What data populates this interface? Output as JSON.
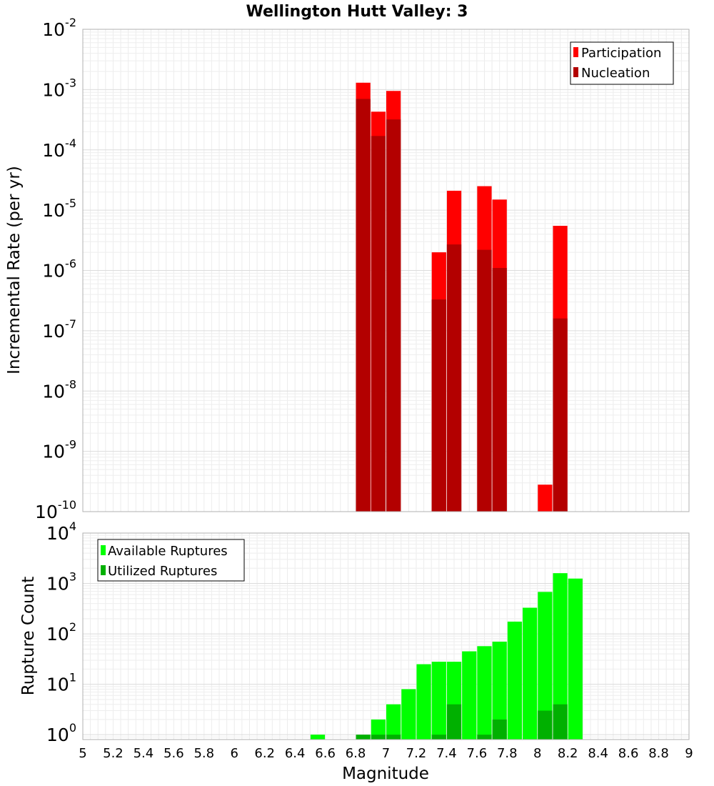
{
  "chart_data": [
    {
      "type": "bar",
      "title": "Wellington Hutt Valley: 3",
      "xlabel": "",
      "ylabel": "Incremental Rate (per yr)",
      "yscale": "log",
      "xlim": [
        5,
        9
      ],
      "ylim": [
        1e-10,
        0.01
      ],
      "grid": true,
      "legend_position": "top-right",
      "y_ticks": [
        {
          "base": "10",
          "exp": "-2",
          "v": 0.01
        },
        {
          "base": "10",
          "exp": "-3",
          "v": 0.001
        },
        {
          "base": "10",
          "exp": "-4",
          "v": 0.0001
        },
        {
          "base": "10",
          "exp": "-5",
          "v": 1e-05
        },
        {
          "base": "10",
          "exp": "-6",
          "v": 1e-06
        },
        {
          "base": "10",
          "exp": "-7",
          "v": 1e-07
        },
        {
          "base": "10",
          "exp": "-8",
          "v": 1e-08
        },
        {
          "base": "10",
          "exp": "-9",
          "v": 1e-09
        },
        {
          "base": "10",
          "exp": "-10",
          "v": 1e-10
        }
      ],
      "series": [
        {
          "name": "Participation",
          "color": "#ff0000",
          "points": [
            {
              "x": 6.85,
              "y": 0.0013
            },
            {
              "x": 6.95,
              "y": 0.00043
            },
            {
              "x": 7.05,
              "y": 0.00095
            },
            {
              "x": 7.35,
              "y": 2e-06
            },
            {
              "x": 7.45,
              "y": 2.1e-05
            },
            {
              "x": 7.65,
              "y": 2.5e-05
            },
            {
              "x": 7.75,
              "y": 1.5e-05
            },
            {
              "x": 8.05,
              "y": 2.8e-10
            },
            {
              "x": 8.15,
              "y": 5.5e-06
            }
          ]
        },
        {
          "name": "Nucleation",
          "color": "#b30000",
          "points": [
            {
              "x": 6.85,
              "y": 0.0007
            },
            {
              "x": 6.95,
              "y": 0.00017
            },
            {
              "x": 7.05,
              "y": 0.00032
            },
            {
              "x": 7.35,
              "y": 3.3e-07
            },
            {
              "x": 7.45,
              "y": 2.7e-06
            },
            {
              "x": 7.65,
              "y": 2.2e-06
            },
            {
              "x": 7.75,
              "y": 1.1e-06
            },
            {
              "x": 8.15,
              "y": 1.6e-07
            }
          ]
        }
      ]
    },
    {
      "type": "bar",
      "title": "",
      "xlabel": "Magnitude",
      "ylabel": "Rupture Count",
      "yscale": "log",
      "xlim": [
        5,
        9
      ],
      "ylim": [
        0.8,
        10000
      ],
      "grid": true,
      "legend_position": "top-left",
      "x_ticks": [
        "5",
        "5.2",
        "5.4",
        "5.6",
        "5.8",
        "6",
        "6.2",
        "6.4",
        "6.6",
        "6.8",
        "7",
        "7.2",
        "7.4",
        "7.6",
        "7.8",
        "8",
        "8.2",
        "8.4",
        "8.6",
        "8.8",
        "9"
      ],
      "y_ticks": [
        {
          "base": "10",
          "exp": "4",
          "v": 10000
        },
        {
          "base": "10",
          "exp": "3",
          "v": 1000
        },
        {
          "base": "10",
          "exp": "2",
          "v": 100
        },
        {
          "base": "10",
          "exp": "1",
          "v": 10
        },
        {
          "base": "10",
          "exp": "0",
          "v": 1
        }
      ],
      "series": [
        {
          "name": "Available Ruptures",
          "color": "#00ff00",
          "points": [
            {
              "x": 6.55,
              "y": 1
            },
            {
              "x": 6.95,
              "y": 2
            },
            {
              "x": 7.05,
              "y": 4
            },
            {
              "x": 7.15,
              "y": 8
            },
            {
              "x": 7.25,
              "y": 25
            },
            {
              "x": 7.35,
              "y": 28
            },
            {
              "x": 7.45,
              "y": 28
            },
            {
              "x": 7.55,
              "y": 45
            },
            {
              "x": 7.65,
              "y": 57
            },
            {
              "x": 7.75,
              "y": 70
            },
            {
              "x": 7.85,
              "y": 175
            },
            {
              "x": 7.95,
              "y": 330
            },
            {
              "x": 8.05,
              "y": 680
            },
            {
              "x": 8.15,
              "y": 1600
            },
            {
              "x": 8.25,
              "y": 1250
            }
          ]
        },
        {
          "name": "Utilized Ruptures",
          "color": "#00b000",
          "points": [
            {
              "x": 6.85,
              "y": 1
            },
            {
              "x": 6.95,
              "y": 1
            },
            {
              "x": 7.05,
              "y": 1
            },
            {
              "x": 7.35,
              "y": 1
            },
            {
              "x": 7.45,
              "y": 4
            },
            {
              "x": 7.65,
              "y": 1
            },
            {
              "x": 7.75,
              "y": 2
            },
            {
              "x": 8.05,
              "y": 3
            },
            {
              "x": 8.15,
              "y": 4
            }
          ]
        }
      ]
    }
  ]
}
